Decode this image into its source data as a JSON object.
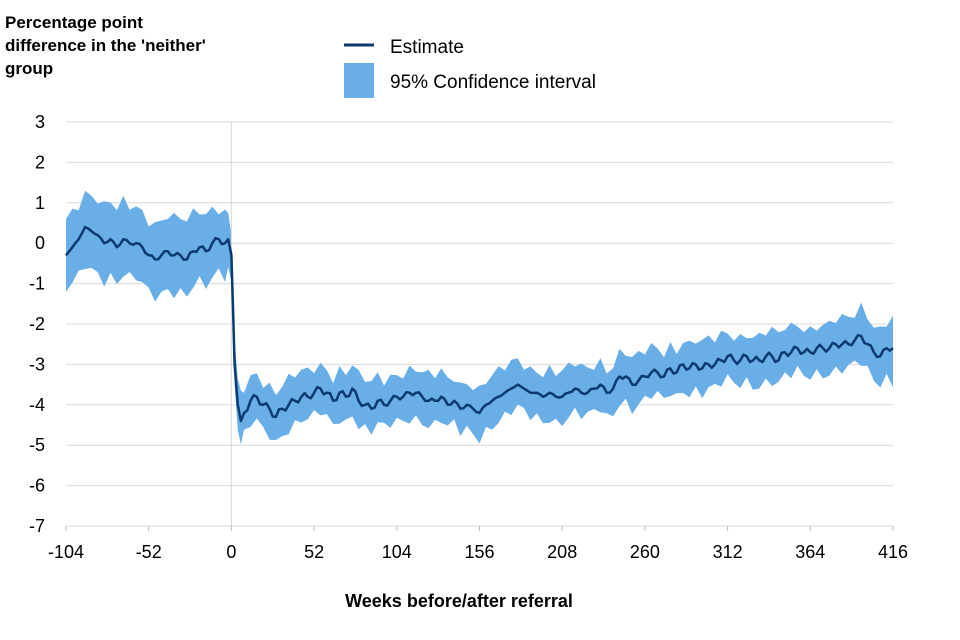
{
  "chart_data": {
    "type": "line",
    "title": "",
    "ylabel_lines": [
      "Percentage point",
      "difference in the 'neither'",
      "group"
    ],
    "xlabel": "Weeks before/after referral",
    "xlim": [
      -104,
      416
    ],
    "ylim": [
      -7,
      3
    ],
    "xticks": [
      -104,
      -52,
      0,
      52,
      104,
      156,
      208,
      260,
      312,
      364,
      416
    ],
    "yticks": [
      3,
      2,
      1,
      0,
      -1,
      -2,
      -3,
      -4,
      -5,
      -6,
      -7
    ],
    "legend": {
      "estimate": "Estimate",
      "ci": "95% Confidence interval",
      "position": "top"
    },
    "colors": {
      "estimate": "#0b3a6e",
      "ci": "#6aaee8",
      "grid": "#d9d9d9",
      "axis": "#bfbfbf"
    },
    "series": [
      {
        "name": "Estimate",
        "x": [
          -104,
          -100,
          -96,
          -92,
          -88,
          -84,
          -80,
          -76,
          -72,
          -68,
          -64,
          -60,
          -56,
          -52,
          -48,
          -44,
          -40,
          -36,
          -32,
          -28,
          -24,
          -20,
          -16,
          -12,
          -8,
          -4,
          -2,
          0,
          1,
          2,
          4,
          6,
          8,
          12,
          16,
          20,
          24,
          28,
          32,
          36,
          40,
          44,
          48,
          52,
          56,
          60,
          64,
          68,
          72,
          76,
          80,
          84,
          88,
          92,
          96,
          100,
          104,
          108,
          112,
          116,
          120,
          124,
          128,
          132,
          136,
          140,
          144,
          148,
          152,
          156,
          160,
          164,
          168,
          172,
          176,
          180,
          184,
          188,
          192,
          196,
          200,
          204,
          208,
          212,
          216,
          220,
          224,
          228,
          232,
          236,
          240,
          244,
          248,
          252,
          256,
          260,
          264,
          268,
          272,
          276,
          280,
          284,
          288,
          292,
          296,
          300,
          304,
          308,
          312,
          316,
          320,
          324,
          328,
          332,
          336,
          340,
          344,
          348,
          352,
          356,
          360,
          364,
          368,
          372,
          376,
          380,
          384,
          388,
          392,
          396,
          400,
          404,
          408,
          412,
          416
        ],
        "y": [
          -0.3,
          -0.1,
          0.1,
          0.4,
          0.3,
          0.2,
          0.0,
          0.1,
          -0.1,
          0.1,
          0.0,
          0.0,
          -0.1,
          -0.3,
          -0.4,
          -0.3,
          -0.2,
          -0.3,
          -0.3,
          -0.4,
          -0.2,
          -0.1,
          -0.2,
          0.0,
          0.1,
          0.0,
          0.1,
          -0.3,
          -1.6,
          -3.0,
          -4.0,
          -4.4,
          -4.2,
          -3.9,
          -3.8,
          -4.0,
          -4.1,
          -4.3,
          -4.1,
          -4.0,
          -3.9,
          -3.8,
          -3.8,
          -3.7,
          -3.6,
          -3.7,
          -3.9,
          -3.7,
          -3.8,
          -3.6,
          -3.9,
          -4.0,
          -4.1,
          -3.9,
          -4.0,
          -3.9,
          -3.8,
          -3.8,
          -3.7,
          -3.7,
          -3.8,
          -3.9,
          -3.9,
          -3.8,
          -4.0,
          -3.9,
          -4.1,
          -4.0,
          -4.1,
          -4.2,
          -4.0,
          -3.9,
          -3.8,
          -3.7,
          -3.6,
          -3.5,
          -3.6,
          -3.7,
          -3.7,
          -3.8,
          -3.7,
          -3.8,
          -3.8,
          -3.7,
          -3.6,
          -3.7,
          -3.7,
          -3.6,
          -3.5,
          -3.7,
          -3.6,
          -3.3,
          -3.3,
          -3.5,
          -3.4,
          -3.3,
          -3.2,
          -3.2,
          -3.3,
          -3.1,
          -3.2,
          -3.0,
          -3.1,
          -3.0,
          -3.1,
          -3.0,
          -3.0,
          -2.9,
          -2.8,
          -2.9,
          -2.9,
          -2.8,
          -2.9,
          -2.9,
          -2.8,
          -2.8,
          -2.9,
          -2.7,
          -2.7,
          -2.6,
          -2.7,
          -2.7,
          -2.6,
          -2.6,
          -2.6,
          -2.5,
          -2.5,
          -2.5,
          -2.4,
          -2.3,
          -2.5,
          -2.7,
          -2.8,
          -2.6,
          -2.6
        ],
        "ci_halfwidth": [
          0.9,
          0.9,
          0.9,
          0.9,
          0.9,
          0.9,
          0.9,
          0.9,
          0.9,
          0.9,
          0.9,
          0.9,
          0.9,
          0.9,
          0.9,
          0.9,
          0.9,
          0.9,
          0.9,
          0.9,
          0.9,
          0.9,
          0.9,
          0.9,
          0.8,
          0.8,
          0.7,
          0.6,
          0.6,
          0.6,
          0.6,
          0.6,
          0.6,
          0.6,
          0.6,
          0.6,
          0.6,
          0.6,
          0.6,
          0.6,
          0.6,
          0.6,
          0.6,
          0.6,
          0.6,
          0.6,
          0.6,
          0.6,
          0.6,
          0.6,
          0.6,
          0.6,
          0.6,
          0.6,
          0.6,
          0.6,
          0.6,
          0.6,
          0.6,
          0.6,
          0.6,
          0.6,
          0.6,
          0.6,
          0.6,
          0.6,
          0.6,
          0.6,
          0.6,
          0.6,
          0.6,
          0.6,
          0.6,
          0.6,
          0.6,
          0.6,
          0.6,
          0.6,
          0.6,
          0.6,
          0.6,
          0.6,
          0.6,
          0.6,
          0.6,
          0.6,
          0.6,
          0.6,
          0.6,
          0.6,
          0.6,
          0.6,
          0.6,
          0.6,
          0.6,
          0.6,
          0.6,
          0.6,
          0.6,
          0.6,
          0.6,
          0.6,
          0.6,
          0.6,
          0.6,
          0.6,
          0.6,
          0.6,
          0.6,
          0.6,
          0.6,
          0.6,
          0.6,
          0.6,
          0.6,
          0.6,
          0.6,
          0.6,
          0.6,
          0.6,
          0.6,
          0.6,
          0.6,
          0.6,
          0.6,
          0.6,
          0.6,
          0.6,
          0.6,
          0.7,
          0.7,
          0.7,
          0.7,
          0.7,
          0.8
        ]
      }
    ]
  }
}
